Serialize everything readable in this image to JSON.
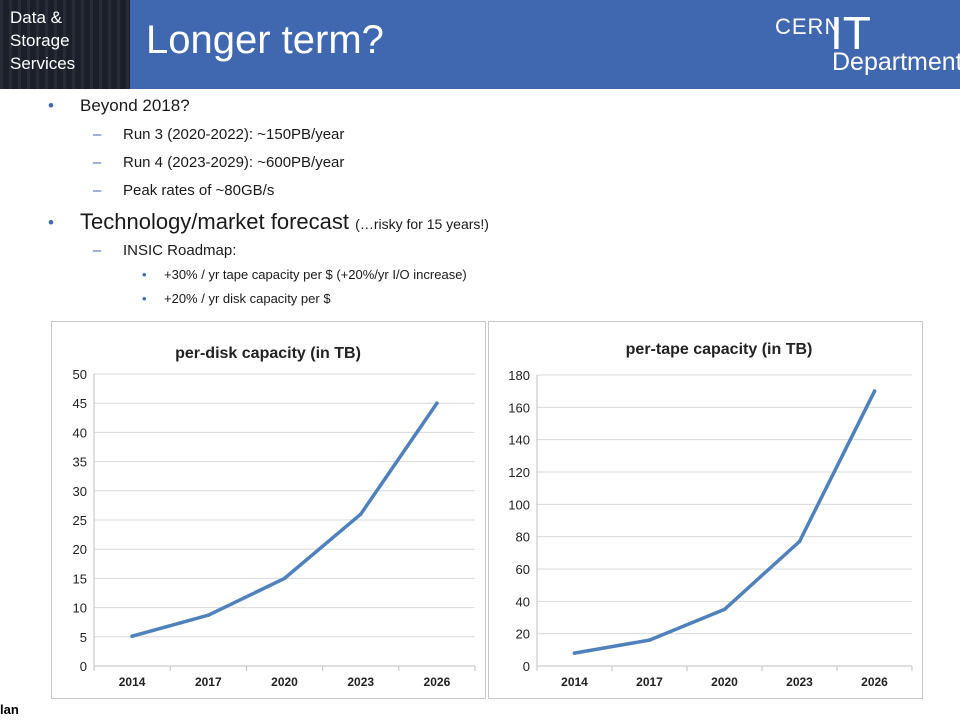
{
  "header": {
    "logo_lines": [
      "Data &",
      "Storage",
      "Services"
    ],
    "title": "Longer term?",
    "cern": "CERN",
    "it": "IT",
    "department": "Department"
  },
  "bullets": {
    "beyond": "Beyond 2018?",
    "run3": "Run 3 (2020-2022): ~150PB/year",
    "run4": "Run 4 (2023-2029): ~600PB/year",
    "peak": "Peak rates of ~80GB/s",
    "tech": "Technology/market forecast",
    "tech_note": "(…risky for 15 years!)",
    "insic": "INSIC Roadmap:",
    "tape": "+30% / yr tape capacity per $ (+20%/yr I/O increase)",
    "disk": "+20% / yr disk capacity per $"
  },
  "footer": {
    "fragment": "lan"
  },
  "colors": {
    "header": "#3f68b0",
    "line": "#4f81bd"
  },
  "chart_data": [
    {
      "type": "line",
      "title": "per-disk capacity (in TB)",
      "categories": [
        "2014",
        "2017",
        "2020",
        "2023",
        "2026"
      ],
      "values": [
        5.1,
        8.7,
        15,
        26,
        45
      ],
      "ylim": [
        0,
        50
      ],
      "yticks": [
        "0",
        "5",
        "10",
        "15",
        "20",
        "25",
        "30",
        "35",
        "40",
        "45",
        "50"
      ],
      "grid": true
    },
    {
      "type": "line",
      "title": "per-tape capacity (in TB)",
      "categories": [
        "2014",
        "2017",
        "2020",
        "2023",
        "2026"
      ],
      "values": [
        8,
        16,
        35,
        77,
        170
      ],
      "ylim": [
        0,
        180
      ],
      "yticks": [
        "0",
        "20",
        "40",
        "60",
        "80",
        "100",
        "120",
        "140",
        "160",
        "180"
      ],
      "grid": true
    }
  ]
}
